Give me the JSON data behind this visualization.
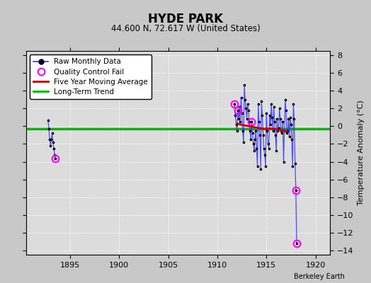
{
  "title": "HYDE PARK",
  "subtitle": "44.600 N, 72.617 W (United States)",
  "ylabel": "Temperature Anomaly (°C)",
  "credit": "Berkeley Earth",
  "xlim": [
    1890.5,
    1921.5
  ],
  "ylim": [
    -14.5,
    8.5
  ],
  "yticks": [
    -14,
    -12,
    -10,
    -8,
    -6,
    -4,
    -2,
    0,
    2,
    4,
    6,
    8
  ],
  "xticks": [
    1895,
    1900,
    1905,
    1910,
    1915,
    1920
  ],
  "background_color": "#c8c8c8",
  "plot_bg_color": "#dcdcdc",
  "line_color": "#3333ff",
  "dot_color": "#000000",
  "qc_color": "#ff00ff",
  "avg_color": "#cc0000",
  "trend_color": "#00bb00",
  "segments": [
    [
      [
        1892.75,
        0.7
      ],
      [
        1892.83,
        -0.3
      ],
      [
        1892.92,
        -1.5
      ],
      [
        1893.0,
        -2.2
      ],
      [
        1893.08,
        -1.5
      ],
      [
        1893.17,
        -0.8
      ],
      [
        1893.25,
        -1.8
      ],
      [
        1893.33,
        -2.5
      ],
      [
        1893.42,
        -3.2
      ],
      [
        1893.5,
        -3.6
      ]
    ],
    [
      [
        1911.75,
        2.5
      ],
      [
        1911.83,
        1.2
      ],
      [
        1911.92,
        0.2
      ],
      [
        1912.0,
        -0.5
      ],
      [
        1912.08,
        1.8
      ],
      [
        1912.17,
        0.8
      ],
      [
        1912.25,
        2.2
      ],
      [
        1912.33,
        0.5
      ],
      [
        1912.42,
        3.2
      ],
      [
        1912.5,
        1.5
      ],
      [
        1912.58,
        -0.5
      ],
      [
        1912.67,
        -1.8
      ],
      [
        1912.75,
        4.7
      ],
      [
        1912.83,
        3.0
      ],
      [
        1912.92,
        2.0
      ],
      [
        1913.0,
        0.8
      ],
      [
        1913.08,
        2.5
      ],
      [
        1913.17,
        1.8
      ],
      [
        1913.25,
        0.5
      ],
      [
        1913.33,
        -0.5
      ],
      [
        1913.42,
        -1.5
      ],
      [
        1913.5,
        0.5
      ],
      [
        1913.58,
        -0.8
      ],
      [
        1913.67,
        -2.0
      ],
      [
        1913.75,
        -2.8
      ],
      [
        1913.83,
        -1.5
      ],
      [
        1913.92,
        -0.5
      ],
      [
        1914.0,
        -2.5
      ],
      [
        1914.08,
        -4.5
      ],
      [
        1914.17,
        2.5
      ],
      [
        1914.25,
        0.5
      ],
      [
        1914.33,
        -1.0
      ],
      [
        1914.42,
        -4.8
      ],
      [
        1914.5,
        2.8
      ],
      [
        1914.58,
        1.2
      ],
      [
        1914.67,
        -1.0
      ],
      [
        1914.75,
        -2.5
      ],
      [
        1914.83,
        -3.2
      ],
      [
        1914.92,
        -4.5
      ],
      [
        1915.0,
        1.5
      ],
      [
        1915.08,
        -0.5
      ],
      [
        1915.17,
        -2.0
      ],
      [
        1915.25,
        -2.5
      ],
      [
        1915.33,
        1.2
      ],
      [
        1915.42,
        0.2
      ],
      [
        1915.5,
        2.5
      ],
      [
        1915.58,
        1.0
      ],
      [
        1915.67,
        -0.5
      ],
      [
        1915.75,
        2.2
      ],
      [
        1915.83,
        0.5
      ],
      [
        1915.92,
        -1.0
      ],
      [
        1916.0,
        -2.8
      ],
      [
        1916.08,
        0.8
      ],
      [
        1916.17,
        -0.5
      ],
      [
        1916.25,
        -0.2
      ],
      [
        1916.33,
        2.0
      ],
      [
        1916.42,
        0.8
      ],
      [
        1916.5,
        -0.5
      ],
      [
        1916.58,
        -0.8
      ],
      [
        1916.67,
        0.5
      ],
      [
        1916.75,
        -4.0
      ],
      [
        1916.83,
        -0.5
      ],
      [
        1916.92,
        3.0
      ],
      [
        1917.0,
        1.8
      ],
      [
        1917.08,
        -0.8
      ],
      [
        1917.17,
        -0.5
      ],
      [
        1917.25,
        0.8
      ],
      [
        1917.33,
        -1.2
      ],
      [
        1917.42,
        1.0
      ],
      [
        1917.5,
        0.2
      ],
      [
        1917.58,
        -1.5
      ],
      [
        1917.67,
        -4.5
      ],
      [
        1917.75,
        2.5
      ],
      [
        1917.83,
        0.8
      ],
      [
        1917.92,
        -4.2
      ],
      [
        1918.0,
        -7.2
      ],
      [
        1918.08,
        -13.2
      ]
    ]
  ],
  "qc_fail_points": [
    [
      1893.5,
      -3.6
    ],
    [
      1911.75,
      2.5
    ],
    [
      1912.08,
      1.8
    ],
    [
      1913.5,
      0.5
    ],
    [
      1918.0,
      -7.2
    ],
    [
      1918.08,
      -13.2
    ]
  ],
  "five_year_avg_x": [
    1912.0,
    1912.5,
    1913.0,
    1913.5,
    1914.0,
    1914.5,
    1915.0,
    1915.5,
    1916.0,
    1916.5,
    1917.0
  ],
  "five_year_avg_y": [
    0.3,
    0.15,
    0.05,
    -0.05,
    -0.15,
    -0.25,
    -0.3,
    -0.25,
    -0.35,
    -0.45,
    -0.55
  ],
  "long_term_trend_y": -0.28
}
